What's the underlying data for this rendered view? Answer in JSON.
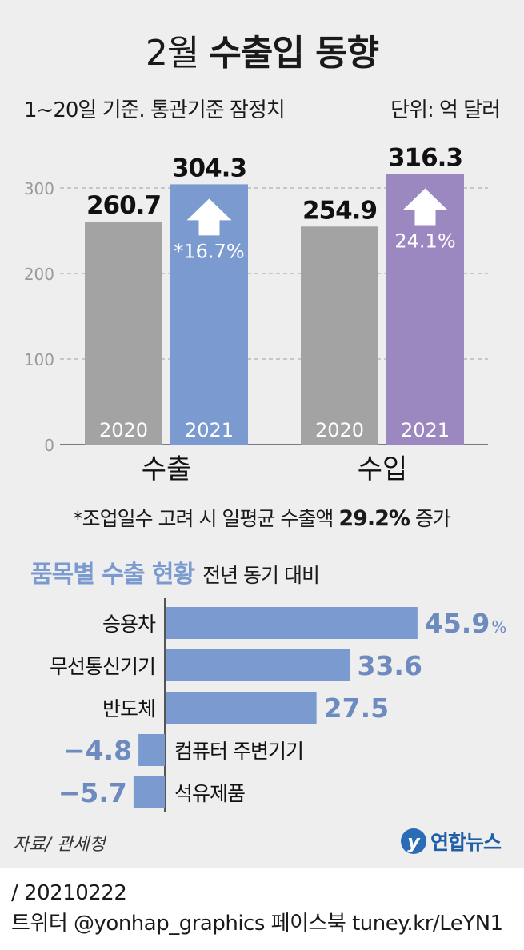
{
  "title": {
    "prefix": "2월",
    "main": "수출입 동향"
  },
  "subtitle": "1~20일 기준. 통관기준 잠정치",
  "unit": "단위: 억 달러",
  "note": {
    "text": "*조업일수 고려 시 일평균 수출액 ",
    "value": "29.2%",
    "suffix": " 증가"
  },
  "section2": {
    "title": "품목별 수출 현황",
    "subtitle": "전년 동기 대비"
  },
  "source": "자료/ 관세청",
  "logo": {
    "text": "연합뉴스",
    "icon": "yonhap-logo-icon"
  },
  "footer": {
    "date_line": "/ 20210222",
    "social_line": "트위터 @yonhap_graphics  페이스북 tuney.kr/LeYN1"
  },
  "colors": {
    "gray": "#a3a3a3",
    "blue": "#7b9bd0",
    "purple": "#9c88c0",
    "hbar": "#7b9bd0",
    "hbarText": "#6e8bbf",
    "arrow": "#ffffff",
    "panel": "#eeeeee"
  },
  "chart_data": [
    {
      "type": "bar",
      "categories": [
        "수출",
        "수입"
      ],
      "series": [
        {
          "name": "2020",
          "values": [
            260.7,
            254.9
          ],
          "labels": [
            "260.7",
            "254.9"
          ]
        },
        {
          "name": "2021",
          "values": [
            304.3,
            316.3
          ],
          "labels": [
            "304.3",
            "316.3"
          ]
        }
      ],
      "changes": [
        "*16.7%",
        "24.1%"
      ],
      "yticks": [
        0,
        100,
        200,
        300
      ],
      "ylim": [
        0,
        330
      ],
      "grid": true
    },
    {
      "type": "bar",
      "orientation": "horizontal",
      "categories": [
        "승용차",
        "무선통신기기",
        "반도체",
        "컴퓨터 주변기기",
        "석유제품"
      ],
      "values": [
        45.9,
        33.6,
        27.5,
        -4.8,
        -5.7
      ],
      "labels": [
        "45.9",
        "33.6",
        "27.5",
        "−4.8",
        "−5.7"
      ],
      "unit_suffix": "%"
    }
  ]
}
